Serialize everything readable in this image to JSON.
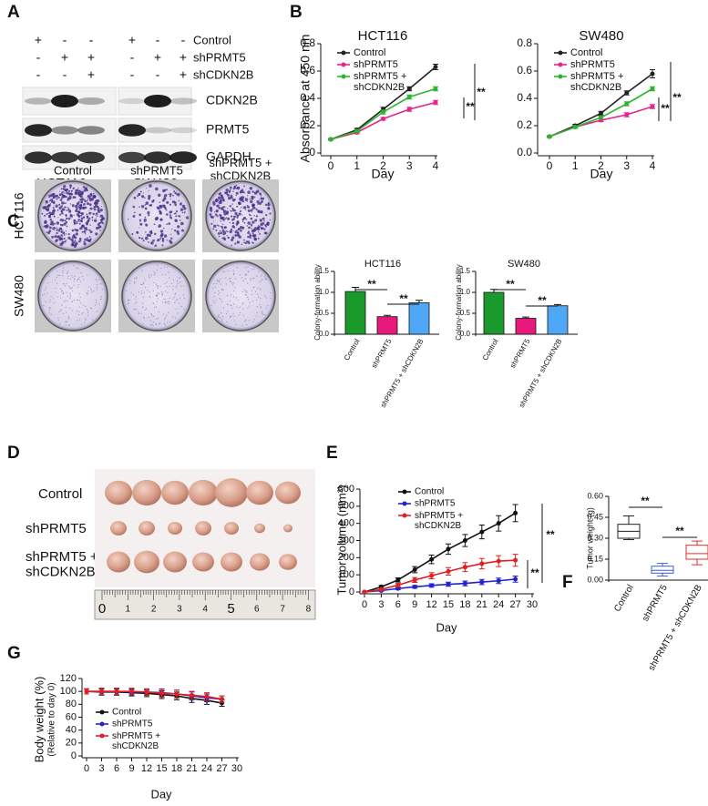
{
  "panel_labels": [
    "A",
    "B",
    "C",
    "D",
    "E",
    "F",
    "G"
  ],
  "panel_a": {
    "rows": [
      {
        "name": "Control",
        "signs": [
          "+",
          "-",
          "-",
          "+",
          "-",
          "-"
        ]
      },
      {
        "name": "shPRMT5",
        "signs": [
          "-",
          "+",
          "+",
          "-",
          "+",
          "+"
        ]
      },
      {
        "name": "shCDKN2B",
        "signs": [
          "-",
          "-",
          "+",
          "-",
          "-",
          "+"
        ]
      }
    ],
    "blots": [
      "CDKN2B",
      "PRMT5",
      "GAPDH"
    ],
    "cell_lines": [
      "HCT116",
      "SW480"
    ]
  },
  "panel_c": {
    "columns": [
      "Control",
      "shPRMT5",
      "shPRMT5 +\nshCDKN2B"
    ],
    "rows": [
      "HCT116",
      "SW480"
    ]
  },
  "panel_d": {
    "rows": [
      "Control",
      "shPRMT5",
      "shPRMT5 +\nshCDKN2B"
    ],
    "ruler": [
      0,
      1,
      2,
      3,
      4,
      5,
      6,
      7,
      8
    ]
  },
  "chart_data": [
    {
      "type": "line",
      "title": "HCT116",
      "x_label": "Day",
      "y_label": "Absorbance at 450 nm",
      "x": [
        0,
        1,
        2,
        3,
        4
      ],
      "xlim": [
        0,
        4
      ],
      "xticks": [
        0,
        1,
        2,
        3,
        4
      ],
      "ylim": [
        0,
        0.8
      ],
      "yticks": [
        0,
        0.2,
        0.4,
        0.6,
        0.8
      ],
      "legend": "upper left",
      "series": [
        {
          "name": "Control",
          "color": "#222222",
          "values": [
            0.1,
            0.17,
            0.32,
            0.47,
            0.63
          ],
          "errors": [
            0.005,
            0.01,
            0.015,
            0.015,
            0.02
          ]
        },
        {
          "name": "shPRMT5",
          "color": "#e6258a",
          "values": [
            0.1,
            0.15,
            0.25,
            0.32,
            0.37
          ],
          "errors": [
            0.005,
            0.01,
            0.01,
            0.015,
            0.015
          ]
        },
        {
          "name": "shPRMT5 +\nshCDKN2B",
          "color": "#2db52d",
          "values": [
            0.1,
            0.16,
            0.3,
            0.41,
            0.47
          ],
          "errors": [
            0.005,
            0.01,
            0.015,
            0.015,
            0.015
          ]
        }
      ],
      "annotations": [
        "**",
        "**"
      ]
    },
    {
      "type": "line",
      "title": "SW480",
      "x_label": "Day",
      "x": [
        0,
        1,
        2,
        3,
        4
      ],
      "xlim": [
        0,
        4
      ],
      "xticks": [
        0,
        1,
        2,
        3,
        4
      ],
      "ylim": [
        0,
        0.8
      ],
      "yticks": [
        {
          "value": 0,
          "label": "0.0"
        },
        0.2,
        0.4,
        0.6,
        0.8
      ],
      "legend": "upper left",
      "series": [
        {
          "name": "Control",
          "color": "#222222",
          "values": [
            0.12,
            0.2,
            0.29,
            0.44,
            0.58
          ],
          "errors": [
            0.005,
            0.01,
            0.015,
            0.015,
            0.03
          ]
        },
        {
          "name": "shPRMT5",
          "color": "#e6258a",
          "values": [
            0.12,
            0.19,
            0.24,
            0.28,
            0.34
          ],
          "errors": [
            0.005,
            0.01,
            0.01,
            0.015,
            0.015
          ]
        },
        {
          "name": "shPRMT5 +\nshCDKN2B",
          "color": "#2db52d",
          "values": [
            0.12,
            0.19,
            0.26,
            0.36,
            0.47
          ],
          "errors": [
            0.005,
            0.01,
            0.01,
            0.015,
            0.015
          ]
        }
      ],
      "annotations": [
        "**",
        "**"
      ]
    },
    {
      "type": "bar",
      "title": "HCT116",
      "y_label": "Colony-formation ability",
      "categories": [
        "Control",
        "shPRMT5",
        "shPRMT5 + shCDKN2B"
      ],
      "values": [
        1.02,
        0.42,
        0.75
      ],
      "errors": [
        0.1,
        0.03,
        0.06
      ],
      "colors": [
        "#1b9a2c",
        "#e8197d",
        "#4fa8f5"
      ],
      "ylim": [
        0,
        1.5
      ],
      "yticks": [
        {
          "value": 0,
          "label": "0.0"
        },
        0.5,
        {
          "value": 1,
          "label": "1.0"
        },
        1.5
      ],
      "annotations": [
        "**",
        "**"
      ]
    },
    {
      "type": "bar",
      "title": "SW480",
      "y_label": "Colony-formation ability",
      "categories": [
        "Control",
        "shPRMT5",
        "shPRMT5 + shCDKN2B"
      ],
      "values": [
        1.0,
        0.38,
        0.68
      ],
      "errors": [
        0.07,
        0.03,
        0.03
      ],
      "colors": [
        "#1b9a2c",
        "#e8197d",
        "#4fa8f5"
      ],
      "ylim": [
        0,
        1.5
      ],
      "yticks": [
        {
          "value": 0,
          "label": "0.0"
        },
        0.5,
        {
          "value": 1,
          "label": "1.0"
        },
        1.5
      ],
      "annotations": [
        "**",
        "**"
      ]
    },
    {
      "type": "line",
      "x_label": "Day",
      "y_label": "Tumor volume (mm³)",
      "x": [
        0,
        3,
        6,
        9,
        12,
        15,
        18,
        21,
        24,
        27
      ],
      "xlim": [
        0,
        30
      ],
      "xticks": [
        0,
        3,
        6,
        9,
        12,
        15,
        18,
        21,
        24,
        27,
        30
      ],
      "ylim": [
        0,
        600
      ],
      "yticks": [
        0,
        100,
        200,
        300,
        400,
        500,
        600
      ],
      "legend": "upper left",
      "series": [
        {
          "name": "Control",
          "color": "#111111",
          "values": [
            0,
            30,
            70,
            130,
            190,
            250,
            300,
            350,
            400,
            460
          ],
          "errors": [
            0,
            8,
            12,
            18,
            25,
            30,
            35,
            40,
            45,
            50
          ]
        },
        {
          "name": "shPRMT5",
          "color": "#2222d0",
          "values": [
            0,
            8,
            20,
            30,
            38,
            45,
            50,
            58,
            65,
            75
          ],
          "errors": [
            0,
            4,
            6,
            8,
            10,
            12,
            14,
            15,
            16,
            18
          ]
        },
        {
          "name": "shPRMT5 +\nshCDKN2B",
          "color": "#e02020",
          "values": [
            0,
            15,
            40,
            70,
            95,
            120,
            145,
            165,
            180,
            185
          ],
          "errors": [
            0,
            6,
            10,
            14,
            18,
            22,
            26,
            30,
            32,
            35
          ]
        }
      ],
      "annotations": [
        "**",
        "**"
      ]
    },
    {
      "type": "box",
      "y_label": "Tumor weight (g)",
      "categories": [
        "Control",
        "shPRMT5",
        "shPRMT5 + shCDKN2B"
      ],
      "boxes": [
        {
          "min": 0.29,
          "q1": 0.3,
          "median": 0.35,
          "q3": 0.4,
          "max": 0.46
        },
        {
          "min": 0.03,
          "q1": 0.05,
          "median": 0.07,
          "q3": 0.1,
          "max": 0.12
        },
        {
          "min": 0.11,
          "q1": 0.15,
          "median": 0.19,
          "q3": 0.25,
          "max": 0.28
        }
      ],
      "colors": [
        "#222222",
        "#3a5fd6",
        "#e03030"
      ],
      "ylim": [
        0,
        0.6
      ],
      "yticks": [
        {
          "value": 0,
          "label": "0.00"
        },
        {
          "value": 0.15,
          "label": "0.15"
        },
        {
          "value": 0.3,
          "label": "0.30"
        },
        {
          "value": 0.45,
          "label": "0.45"
        },
        {
          "value": 0.6,
          "label": "0.60"
        }
      ],
      "annotations": [
        "**",
        "**"
      ]
    },
    {
      "type": "line",
      "x_label": "Day",
      "y_label": "Body weight (%)",
      "y_sublabel": "(Relative to day 0)",
      "x": [
        0,
        3,
        6,
        9,
        12,
        15,
        18,
        21,
        24,
        27
      ],
      "xlim": [
        0,
        30
      ],
      "xticks": [
        0,
        3,
        6,
        9,
        12,
        15,
        18,
        21,
        24,
        27,
        30
      ],
      "ylim": [
        0,
        120
      ],
      "yticks": [
        0,
        20,
        40,
        60,
        80,
        100,
        120
      ],
      "legend": "lower left",
      "series": [
        {
          "name": "Control",
          "color": "#111111",
          "values": [
            100,
            99,
            99,
            98,
            97,
            95,
            93,
            89,
            86,
            82
          ],
          "errors": [
            4,
            5,
            5,
            5,
            5,
            6,
            6,
            6,
            6,
            5
          ]
        },
        {
          "name": "shPRMT5",
          "color": "#2222d0",
          "values": [
            100,
            100,
            100,
            99,
            99,
            98,
            96,
            93,
            90,
            88
          ],
          "errors": [
            4,
            5,
            5,
            5,
            5,
            6,
            6,
            6,
            6,
            5
          ]
        },
        {
          "name": "shPRMT5 +\nshCDKN2B",
          "color": "#e02020",
          "values": [
            100,
            100,
            100,
            100,
            99,
            97,
            96,
            94,
            92,
            88
          ],
          "errors": [
            4,
            5,
            5,
            5,
            5,
            6,
            6,
            6,
            6,
            5
          ]
        }
      ]
    }
  ]
}
